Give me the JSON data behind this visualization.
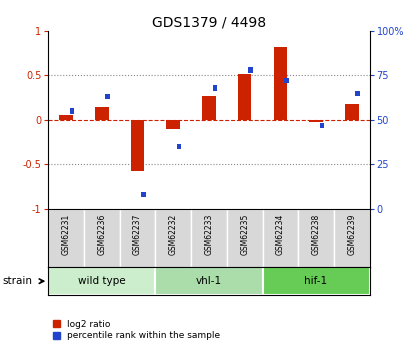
{
  "title": "GDS1379 / 4498",
  "samples": [
    "GSM62231",
    "GSM62236",
    "GSM62237",
    "GSM62232",
    "GSM62233",
    "GSM62235",
    "GSM62234",
    "GSM62238",
    "GSM62239"
  ],
  "log2_ratio": [
    0.05,
    0.15,
    -0.57,
    -0.1,
    0.27,
    0.52,
    0.82,
    -0.02,
    0.18
  ],
  "percentile_rank": [
    55,
    63,
    8,
    35,
    68,
    78,
    72,
    47,
    65
  ],
  "groups": [
    {
      "label": "wild type",
      "indices": [
        0,
        1,
        2
      ],
      "color": "#cceecc"
    },
    {
      "label": "vhl-1",
      "indices": [
        3,
        4,
        5
      ],
      "color": "#aaddaa"
    },
    {
      "label": "hif-1",
      "indices": [
        6,
        7,
        8
      ],
      "color": "#66cc55"
    }
  ],
  "bar_color_red": "#cc2200",
  "bar_color_blue": "#2244cc",
  "ylim_left": [
    -1,
    1
  ],
  "ylim_right": [
    0,
    100
  ],
  "yticks_left": [
    -1,
    -0.5,
    0,
    0.5,
    1
  ],
  "yticks_right": [
    0,
    25,
    50,
    75,
    100
  ],
  "yticklabels_left": [
    "-1",
    "-0.5",
    "0",
    "0.5",
    "1"
  ],
  "yticklabels_right": [
    "0",
    "25",
    "50",
    "75",
    "100%"
  ],
  "background_color": "#ffffff",
  "label_log2": "log2 ratio",
  "label_pct": "percentile rank within the sample",
  "strain_label": "strain"
}
